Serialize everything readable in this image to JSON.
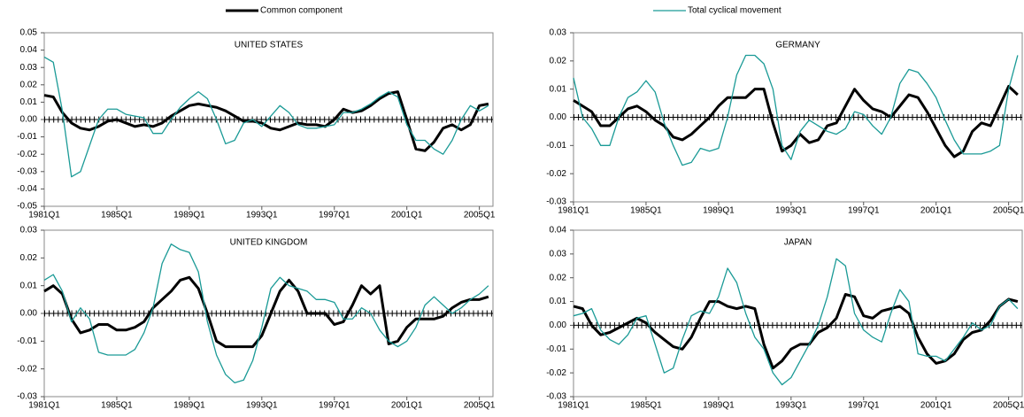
{
  "chart_data": [
    {
      "type": "line",
      "title": "UNITED STATES",
      "x": [
        1981,
        1981.5,
        1982,
        1982.5,
        1983,
        1983.5,
        1984,
        1984.5,
        1985,
        1985.5,
        1986,
        1986.5,
        1987,
        1987.5,
        1988,
        1988.5,
        1989,
        1989.5,
        1990,
        1990.5,
        1991,
        1991.5,
        1992,
        1992.5,
        1993,
        1993.5,
        1994,
        1994.5,
        1995,
        1995.5,
        1996,
        1996.5,
        1997,
        1997.5,
        1998,
        1998.5,
        1999,
        1999.5,
        2000,
        2000.5,
        2001,
        2001.5,
        2002,
        2002.5,
        2003,
        2003.5,
        2004,
        2004.5,
        2005,
        2005.5
      ],
      "xlim": [
        1981,
        2005.75
      ],
      "xticks": [
        {
          "value": 1981,
          "label": "1981Q1"
        },
        {
          "value": 1985,
          "label": "1985Q1"
        },
        {
          "value": 1989,
          "label": "1989Q1"
        },
        {
          "value": 1993,
          "label": "1993Q1"
        },
        {
          "value": 1997,
          "label": "1997Q1"
        },
        {
          "value": 2001,
          "label": "2001Q1"
        },
        {
          "value": 2005,
          "label": "2005Q1"
        }
      ],
      "ylim": [
        -0.05,
        0.05
      ],
      "yticks": [
        -0.05,
        -0.04,
        -0.03,
        -0.02,
        -0.01,
        {
          "value": 0,
          "label": "0.00"
        },
        0.01,
        0.02,
        0.03,
        0.04,
        0.05
      ],
      "series": [
        {
          "name": "Common component",
          "color": "#000000",
          "values": [
            0.014,
            0.013,
            0.004,
            -0.002,
            -0.005,
            -0.006,
            -0.004,
            -0.001,
            0,
            -0.002,
            -0.004,
            -0.003,
            -0.004,
            -0.002,
            0.002,
            0.005,
            0.008,
            0.009,
            0.008,
            0.007,
            0.005,
            0.002,
            -0.001,
            -0.001,
            -0.002,
            -0.005,
            -0.006,
            -0.004,
            -0.002,
            -0.003,
            -0.003,
            -0.004,
            0,
            0.006,
            0.004,
            0.005,
            0.008,
            0.012,
            0.015,
            0.016,
            0,
            -0.017,
            -0.018,
            -0.013,
            -0.005,
            -0.003,
            -0.006,
            -0.003,
            0.008,
            0.009
          ]
        },
        {
          "name": "Total cyclical movement",
          "color": "#1a9a96",
          "values": [
            0.036,
            0.033,
            0.005,
            -0.033,
            -0.03,
            -0.015,
            0,
            0.006,
            0.006,
            0.003,
            0.002,
            0.001,
            -0.008,
            -0.008,
            0,
            0.007,
            0.012,
            0.016,
            0.012,
            0,
            -0.014,
            -0.012,
            -0.002,
            0,
            -0.004,
            0.002,
            0.008,
            0.004,
            -0.003,
            -0.005,
            -0.005,
            -0.004,
            -0.003,
            0.004,
            0.004,
            0.006,
            0.009,
            0.013,
            0.016,
            0.013,
            -0.003,
            -0.012,
            -0.012,
            -0.017,
            -0.02,
            -0.012,
            0,
            0.008,
            0.005,
            0.008
          ]
        }
      ]
    },
    {
      "type": "line",
      "title": "GERMANY",
      "x": [
        1981,
        1981.5,
        1982,
        1982.5,
        1983,
        1983.5,
        1984,
        1984.5,
        1985,
        1985.5,
        1986,
        1986.5,
        1987,
        1987.5,
        1988,
        1988.5,
        1989,
        1989.5,
        1990,
        1990.5,
        1991,
        1991.5,
        1992,
        1992.5,
        1993,
        1993.5,
        1994,
        1994.5,
        1995,
        1995.5,
        1996,
        1996.5,
        1997,
        1997.5,
        1998,
        1998.5,
        1999,
        1999.5,
        2000,
        2000.5,
        2001,
        2001.5,
        2002,
        2002.5,
        2003,
        2003.5,
        2004,
        2004.5,
        2005,
        2005.5
      ],
      "xlim": [
        1981,
        2005.75
      ],
      "xticks": [
        {
          "value": 1981,
          "label": "1981Q1"
        },
        {
          "value": 1985,
          "label": "1985Q1"
        },
        {
          "value": 1989,
          "label": "1989Q1"
        },
        {
          "value": 1993,
          "label": "1993Q1"
        },
        {
          "value": 1997,
          "label": "1997Q1"
        },
        {
          "value": 2001,
          "label": "2001Q1"
        },
        {
          "value": 2005,
          "label": "2005Q1"
        }
      ],
      "ylim": [
        -0.03,
        0.03
      ],
      "yticks": [
        -0.03,
        -0.02,
        -0.01,
        {
          "value": 0,
          "label": "0.00"
        },
        0.01,
        0.02,
        0.03
      ],
      "series": [
        {
          "color": "#000000",
          "values": [
            0.006,
            0.004,
            0.002,
            -0.003,
            -0.003,
            0,
            0.003,
            0.004,
            0.002,
            -0.001,
            -0.003,
            -0.007,
            -0.008,
            -0.006,
            -0.003,
            0,
            0.004,
            0.007,
            0.007,
            0.007,
            0.01,
            0.01,
            -0.002,
            -0.012,
            -0.01,
            -0.006,
            -0.009,
            -0.008,
            -0.003,
            -0.002,
            0.004,
            0.01,
            0.006,
            0.003,
            0.002,
            0,
            0.004,
            0.008,
            0.007,
            0.002,
            -0.004,
            -0.01,
            -0.014,
            -0.012,
            -0.005,
            -0.002,
            -0.003,
            0.004,
            0.011,
            0.008
          ]
        },
        {
          "color": "#1a9a96",
          "values": [
            0.014,
            0,
            -0.004,
            -0.01,
            -0.01,
            0,
            0.007,
            0.009,
            0.013,
            0.009,
            -0.002,
            -0.01,
            -0.017,
            -0.016,
            -0.011,
            -0.012,
            -0.011,
            0,
            0.015,
            0.022,
            0.022,
            0.019,
            0.01,
            -0.01,
            -0.015,
            -0.005,
            -0.001,
            -0.003,
            -0.005,
            -0.006,
            -0.004,
            0.002,
            0.001,
            -0.003,
            -0.006,
            0,
            0.012,
            0.017,
            0.016,
            0.012,
            0.007,
            -0.001,
            -0.008,
            -0.013,
            -0.013,
            -0.013,
            -0.012,
            -0.01,
            0.01,
            0.022
          ]
        }
      ]
    },
    {
      "type": "line",
      "title": "UNITED KINGDOM",
      "x": [
        1981,
        1981.5,
        1982,
        1982.5,
        1983,
        1983.5,
        1984,
        1984.5,
        1985,
        1985.5,
        1986,
        1986.5,
        1987,
        1987.5,
        1988,
        1988.5,
        1989,
        1989.5,
        1990,
        1990.5,
        1991,
        1991.5,
        1992,
        1992.5,
        1993,
        1993.5,
        1994,
        1994.5,
        1995,
        1995.5,
        1996,
        1996.5,
        1997,
        1997.5,
        1998,
        1998.5,
        1999,
        1999.5,
        2000,
        2000.5,
        2001,
        2001.5,
        2002,
        2002.5,
        2003,
        2003.5,
        2004,
        2004.5,
        2005,
        2005.5
      ],
      "xlim": [
        1981,
        2005.75
      ],
      "xticks": [
        {
          "value": 1981,
          "label": "1981Q1"
        },
        {
          "value": 1985,
          "label": "1985Q1"
        },
        {
          "value": 1989,
          "label": "1989Q1"
        },
        {
          "value": 1993,
          "label": "1993Q1"
        },
        {
          "value": 1997,
          "label": "1997Q1"
        },
        {
          "value": 2001,
          "label": "2001Q1"
        },
        {
          "value": 2005,
          "label": "2005Q1"
        }
      ],
      "ylim": [
        -0.03,
        0.03
      ],
      "yticks": [
        -0.03,
        -0.02,
        -0.01,
        {
          "value": 0,
          "label": "0.00"
        },
        0.01,
        0.02,
        0.03
      ],
      "series": [
        {
          "color": "#000000",
          "values": [
            0.008,
            0.01,
            0.007,
            -0.002,
            -0.007,
            -0.006,
            -0.004,
            -0.004,
            -0.006,
            -0.006,
            -0.005,
            -0.003,
            0.002,
            0.005,
            0.008,
            0.012,
            0.013,
            0.009,
            0,
            -0.01,
            -0.012,
            -0.012,
            -0.012,
            -0.012,
            -0.008,
            0,
            0.008,
            0.012,
            0.008,
            0,
            0,
            0,
            -0.004,
            -0.003,
            0.003,
            0.01,
            0.007,
            0.01,
            -0.011,
            -0.01,
            -0.005,
            -0.002,
            -0.002,
            -0.002,
            -0.001,
            0.002,
            0.004,
            0.005,
            0.005,
            0.006
          ]
        },
        {
          "color": "#1a9a96",
          "values": [
            0.012,
            0.014,
            0.008,
            -0.003,
            0.002,
            -0.002,
            -0.014,
            -0.015,
            -0.015,
            -0.015,
            -0.013,
            -0.007,
            0.002,
            0.018,
            0.025,
            0.023,
            0.022,
            0.015,
            -0.003,
            -0.015,
            -0.022,
            -0.025,
            -0.024,
            -0.017,
            -0.005,
            0.009,
            0.013,
            0.01,
            0.009,
            0.008,
            0.005,
            0.005,
            0.004,
            -0.002,
            -0.002,
            0.002,
            0,
            -0.006,
            -0.01,
            -0.012,
            -0.01,
            -0.005,
            0.003,
            0.006,
            0.003,
            0,
            0.002,
            0.005,
            0.007,
            0.01
          ]
        }
      ]
    },
    {
      "type": "line",
      "title": "JAPAN",
      "x": [
        1981,
        1981.5,
        1982,
        1982.5,
        1983,
        1983.5,
        1984,
        1984.5,
        1985,
        1985.5,
        1986,
        1986.5,
        1987,
        1987.5,
        1988,
        1988.5,
        1989,
        1989.5,
        1990,
        1990.5,
        1991,
        1991.5,
        1992,
        1992.5,
        1993,
        1993.5,
        1994,
        1994.5,
        1995,
        1995.5,
        1996,
        1996.5,
        1997,
        1997.5,
        1998,
        1998.5,
        1999,
        1999.5,
        2000,
        2000.5,
        2001,
        2001.5,
        2002,
        2002.5,
        2003,
        2003.5,
        2004,
        2004.5,
        2005,
        2005.5
      ],
      "xlim": [
        1981,
        2005.75
      ],
      "xticks": [
        {
          "value": 1981,
          "label": "1981Q1"
        },
        {
          "value": 1985,
          "label": "1985Q1"
        },
        {
          "value": 1989,
          "label": "1989Q1"
        },
        {
          "value": 1993,
          "label": "1993Q1"
        },
        {
          "value": 1997,
          "label": "1997Q1"
        },
        {
          "value": 2001,
          "label": "2001Q1"
        },
        {
          "value": 2005,
          "label": "2005Q1"
        }
      ],
      "ylim": [
        -0.03,
        0.04
      ],
      "yticks": [
        -0.03,
        -0.02,
        -0.01,
        {
          "value": 0,
          "label": "0.00"
        },
        0.01,
        0.02,
        0.03,
        0.04
      ],
      "series": [
        {
          "color": "#000000",
          "values": [
            0.008,
            0.007,
            0,
            -0.004,
            -0.003,
            -0.001,
            0.001,
            0.003,
            0.001,
            -0.003,
            -0.006,
            -0.009,
            -0.01,
            -0.005,
            0.003,
            0.01,
            0.01,
            0.008,
            0.007,
            0.008,
            0.007,
            -0.008,
            -0.018,
            -0.015,
            -0.01,
            -0.008,
            -0.008,
            -0.003,
            -0.001,
            0.003,
            0.013,
            0.012,
            0.004,
            0.003,
            0.006,
            0.007,
            0.008,
            0.005,
            -0.005,
            -0.012,
            -0.016,
            -0.015,
            -0.012,
            -0.006,
            -0.003,
            -0.002,
            0.002,
            0.008,
            0.011,
            0.01
          ]
        },
        {
          "color": "#1a9a96",
          "values": [
            0.004,
            0.005,
            0.007,
            -0.002,
            -0.006,
            -0.008,
            -0.004,
            0.003,
            0.004,
            -0.008,
            -0.02,
            -0.018,
            -0.006,
            0.004,
            0.006,
            0.005,
            0.012,
            0.024,
            0.018,
            0.005,
            -0.005,
            -0.01,
            -0.02,
            -0.025,
            -0.022,
            -0.015,
            -0.008,
            0,
            0.012,
            0.028,
            0.025,
            0.005,
            -0.002,
            -0.005,
            -0.007,
            0.005,
            0.015,
            0.01,
            -0.012,
            -0.013,
            -0.013,
            -0.015,
            -0.01,
            -0.005,
            0.001,
            -0.002,
            0,
            0.008,
            0.011,
            0.007
          ]
        }
      ]
    }
  ]
}
